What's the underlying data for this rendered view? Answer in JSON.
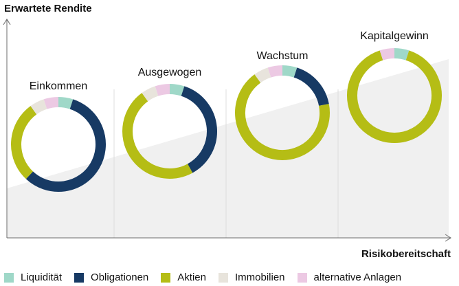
{
  "chart_data": {
    "type": "pie",
    "ylabel": "Erwartete Rendite",
    "xlabel": "Risikobereitschaft",
    "legend_position": "bottom",
    "categories": [
      "Liquidität",
      "Obligationen",
      "Aktien",
      "Immobilien",
      "alternative Anlagen"
    ],
    "colors": {
      "Liquidität": "#9fd8c8",
      "Obligationen": "#173a64",
      "Aktien": "#b5bd15",
      "Immobilien": "#e8e4dc",
      "alternative Anlagen": "#ecc9e3"
    },
    "series": [
      {
        "name": "Einkommen",
        "values": [
          5,
          57,
          28,
          5,
          5
        ]
      },
      {
        "name": "Ausgewogen",
        "values": [
          5,
          37,
          48,
          5,
          5
        ]
      },
      {
        "name": "Wachstum",
        "values": [
          5,
          17,
          68,
          5,
          5
        ]
      },
      {
        "name": "Kapitalgewinn",
        "values": [
          5,
          0,
          90,
          0,
          5
        ]
      }
    ]
  }
}
